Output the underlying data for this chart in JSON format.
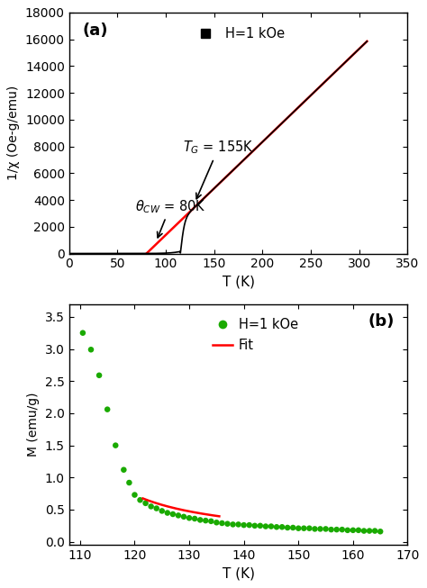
{
  "panel_a": {
    "title_label": "(a)",
    "xlabel": "T (K)",
    "ylabel": "1/χ (Oe-g/emu)",
    "xlim": [
      0,
      335
    ],
    "ylim": [
      0,
      18000
    ],
    "yticks": [
      0,
      2000,
      4000,
      6000,
      8000,
      10000,
      12000,
      14000,
      16000,
      18000
    ],
    "xticks": [
      0,
      50,
      100,
      150,
      200,
      250,
      300,
      350
    ],
    "data_color": "#000000",
    "fit_color": "#ff0000",
    "legend_label": "H=1 kOe",
    "theta_cw": 80,
    "T_G": 155,
    "slope": 69.5,
    "T_kink": 115,
    "background_color": "#ffffff"
  },
  "panel_b": {
    "title_label": "(b)",
    "xlabel": "T (K)",
    "ylabel": "M (emu/g)",
    "xlim": [
      108,
      168
    ],
    "ylim": [
      -0.05,
      3.7
    ],
    "yticks": [
      0.0,
      0.5,
      1.0,
      1.5,
      2.0,
      2.5,
      3.0,
      3.5
    ],
    "xticks": [
      110,
      120,
      130,
      140,
      150,
      160,
      170
    ],
    "data_color": "#1aaa00",
    "fit_color": "#ff0000",
    "legend_label_data": "H=1 kOe",
    "legend_label_fit": "Fit",
    "background_color": "#ffffff",
    "scatter_x": [
      110.5,
      112.0,
      113.5,
      115.0,
      116.5,
      118.0,
      119.0,
      120.0,
      121.0,
      122.0,
      123.0,
      124.0,
      125.0,
      126.0,
      127.0,
      128.0,
      129.0,
      130.0,
      131.0,
      132.0,
      133.0,
      134.0,
      135.0,
      136.0,
      137.0,
      138.0,
      139.0,
      140.0,
      141.0,
      142.0,
      143.0,
      144.0,
      145.0,
      146.0,
      147.0,
      148.0,
      149.0,
      150.0,
      151.0,
      152.0,
      153.0,
      154.0,
      155.0,
      156.0,
      157.0,
      158.0,
      159.0,
      160.0,
      161.0,
      162.0,
      163.0,
      164.0,
      165.0
    ],
    "scatter_y": [
      3.25,
      2.99,
      2.59,
      2.06,
      1.5,
      1.12,
      0.92,
      0.73,
      0.65,
      0.6,
      0.55,
      0.52,
      0.48,
      0.45,
      0.43,
      0.41,
      0.39,
      0.37,
      0.36,
      0.34,
      0.33,
      0.32,
      0.3,
      0.29,
      0.28,
      0.27,
      0.27,
      0.26,
      0.26,
      0.25,
      0.25,
      0.24,
      0.24,
      0.23,
      0.23,
      0.22,
      0.22,
      0.21,
      0.21,
      0.21,
      0.2,
      0.2,
      0.2,
      0.19,
      0.19,
      0.19,
      0.18,
      0.18,
      0.18,
      0.17,
      0.17,
      0.17,
      0.16
    ],
    "fit_x_start": 121.5,
    "fit_x_end": 135.5,
    "fit_C": 13.5,
    "fit_T0": 101.5,
    "fit_gamma": 1.0
  }
}
